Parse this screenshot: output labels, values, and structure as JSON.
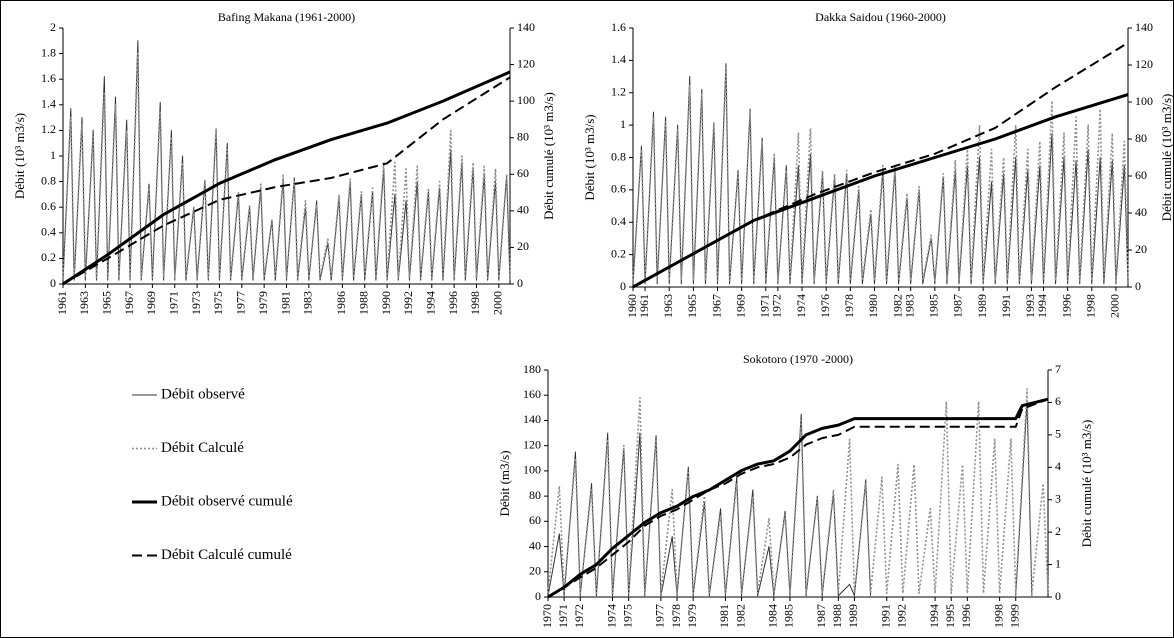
{
  "chart_data": [
    {
      "type": "line",
      "title": "Bafing Makana (1961-2000)",
      "ylabel": "Débit (10³ m3/s)",
      "y2label": "Débit cumulé (10³ m3/s)",
      "xlim": [
        1961,
        2001
      ],
      "xticks": [
        1961,
        1963,
        1965,
        1967,
        1969,
        1971,
        1973,
        1975,
        1977,
        1979,
        1981,
        1983,
        1986,
        1988,
        1990,
        1992,
        1994,
        1996,
        1998,
        2000
      ],
      "ylim": [
        0,
        2
      ],
      "yticks": [
        0,
        0.2,
        0.4,
        0.6,
        0.8,
        1,
        1.2,
        1.4,
        1.6,
        1.8,
        2
      ],
      "y2lim": [
        0,
        140
      ],
      "y2ticks": [
        0,
        20,
        40,
        60,
        80,
        100,
        120,
        140
      ],
      "x": [
        1961,
        1961.7,
        1962,
        1962.7,
        1963,
        1963.7,
        1964,
        1964.7,
        1965,
        1965.7,
        1966,
        1966.7,
        1967,
        1967.7,
        1968,
        1968.7,
        1969,
        1969.7,
        1970,
        1970.7,
        1971,
        1971.7,
        1972,
        1972.7,
        1973,
        1973.7,
        1974,
        1974.7,
        1975,
        1975.7,
        1976,
        1976.7,
        1977,
        1977.7,
        1978,
        1978.7,
        1979,
        1979.7,
        1980,
        1980.7,
        1981,
        1981.7,
        1982,
        1982.7,
        1983,
        1983.7,
        1984,
        1984.7,
        1985,
        1985.7,
        1986,
        1986.7,
        1987,
        1987.7,
        1988,
        1988.7,
        1989,
        1989.7,
        1990,
        1990.7,
        1991,
        1991.7,
        1992,
        1992.7,
        1993,
        1993.7,
        1994,
        1994.7,
        1995,
        1995.7,
        1996,
        1996.7,
        1997,
        1997.7,
        1998,
        1998.7,
        1999,
        1999.7,
        2000,
        2000.7,
        2001
      ],
      "series": [
        {
          "name": "Débit observé",
          "color": "#333333",
          "width": 1,
          "dash": "none",
          "values": [
            0.03,
            1.37,
            0.03,
            1.3,
            0.03,
            1.2,
            0.03,
            1.62,
            0.03,
            1.46,
            0.03,
            1.28,
            0.03,
            1.9,
            0.03,
            0.78,
            0.03,
            1.42,
            0.03,
            1.2,
            0.03,
            1.0,
            0.03,
            0.6,
            0.03,
            0.8,
            0.03,
            1.2,
            0.03,
            1.1,
            0.03,
            0.7,
            0.03,
            0.6,
            0.03,
            0.75,
            0.03,
            0.5,
            0.03,
            0.82,
            0.03,
            0.83,
            0.03,
            0.6,
            0.03,
            0.65,
            0.03,
            0.32,
            0.03,
            0.68,
            0.03,
            0.8,
            0.03,
            0.7,
            0.03,
            0.72,
            0.03,
            0.9,
            0.03,
            0.7,
            0.03,
            0.65,
            0.03,
            0.8,
            0.03,
            0.72,
            0.03,
            0.75,
            0.03,
            1.05,
            0.03,
            0.95,
            0.03,
            0.9,
            0.03,
            0.85,
            0.03,
            0.8,
            0.03,
            0.85,
            0.03
          ]
        },
        {
          "name": "Débit Calculé",
          "color": "#909090",
          "width": 1.6,
          "dash": "2,2",
          "values": [
            0.05,
            1.3,
            0.05,
            1.25,
            0.05,
            1.15,
            0.05,
            1.5,
            0.05,
            1.4,
            0.05,
            1.2,
            0.05,
            1.8,
            0.05,
            0.75,
            0.05,
            1.35,
            0.05,
            1.15,
            0.05,
            0.95,
            0.05,
            0.6,
            0.05,
            0.82,
            0.05,
            1.22,
            0.05,
            1.05,
            0.05,
            0.72,
            0.05,
            0.62,
            0.05,
            0.78,
            0.05,
            0.5,
            0.05,
            0.85,
            0.05,
            0.8,
            0.05,
            0.65,
            0.05,
            0.62,
            0.05,
            0.35,
            0.05,
            0.7,
            0.05,
            0.82,
            0.05,
            0.72,
            0.05,
            0.75,
            0.05,
            0.95,
            0.05,
            0.95,
            0.05,
            0.9,
            0.05,
            0.92,
            0.05,
            0.75,
            0.05,
            0.8,
            0.05,
            1.2,
            0.05,
            1.0,
            0.05,
            0.95,
            0.05,
            0.92,
            0.05,
            0.9,
            0.05,
            0.85,
            0.05
          ]
        },
        {
          "name": "Débit observé cumulé",
          "color": "#000000",
          "width": 3,
          "dash": "none",
          "axis": "y2",
          "x": [
            1961,
            1965,
            1970,
            1975,
            1980,
            1985,
            1990,
            1995,
            2001
          ],
          "values": [
            0,
            16,
            38,
            55,
            68,
            79,
            88,
            100,
            116
          ]
        },
        {
          "name": "Débit Calculé cumulé",
          "color": "#000000",
          "width": 2,
          "dash": "10,5",
          "axis": "y2",
          "x": [
            1961,
            1965,
            1970,
            1975,
            1980,
            1985,
            1990,
            1995,
            2001
          ],
          "values": [
            0,
            14,
            32,
            46,
            53,
            58,
            66,
            90,
            113
          ]
        }
      ]
    },
    {
      "type": "line",
      "title": "Dakka Saidou (1960-2000)",
      "ylabel": "Débit (10³ m3/s)",
      "y2label": "Débit cumulé (10³ m3/s)",
      "xlim": [
        1960,
        2001
      ],
      "xticks": [
        1960,
        1961,
        1963,
        1965,
        1967,
        1969,
        1971,
        1972,
        1974,
        1976,
        1978,
        1980,
        1982,
        1983,
        1985,
        1987,
        1989,
        1991,
        1993,
        1994,
        1996,
        1998,
        2000
      ],
      "ylim": [
        0,
        1.6
      ],
      "yticks": [
        0,
        0.2,
        0.4,
        0.6,
        0.8,
        1,
        1.2,
        1.4,
        1.6
      ],
      "y2lim": [
        0,
        140
      ],
      "y2ticks": [
        0,
        20,
        40,
        60,
        80,
        100,
        120,
        140
      ],
      "x": [
        1960,
        1960.7,
        1961,
        1961.7,
        1962,
        1962.7,
        1963,
        1963.7,
        1964,
        1964.7,
        1965,
        1965.7,
        1966,
        1966.7,
        1967,
        1967.7,
        1968,
        1968.7,
        1969,
        1969.7,
        1970,
        1970.7,
        1971,
        1971.7,
        1972,
        1972.7,
        1973,
        1973.7,
        1974,
        1974.7,
        1975,
        1975.7,
        1976,
        1976.7,
        1977,
        1977.7,
        1978,
        1978.7,
        1979,
        1979.7,
        1980,
        1980.7,
        1981,
        1981.7,
        1982,
        1982.7,
        1983,
        1983.7,
        1984,
        1984.7,
        1985,
        1985.7,
        1986,
        1986.7,
        1987,
        1987.7,
        1988,
        1988.7,
        1989,
        1989.7,
        1990,
        1990.7,
        1991,
        1991.7,
        1992,
        1992.7,
        1993,
        1993.7,
        1994,
        1994.7,
        1995,
        1995.7,
        1996,
        1996.7,
        1997,
        1997.7,
        1998,
        1998.7,
        1999,
        1999.7,
        2000,
        2000.7,
        2001
      ],
      "series": [
        {
          "color": "#333333",
          "width": 1,
          "dash": "none",
          "values": [
            0.02,
            0.87,
            0.02,
            1.08,
            0.02,
            1.05,
            0.02,
            1.0,
            0.02,
            1.3,
            0.02,
            1.22,
            0.02,
            1.0,
            0.02,
            1.38,
            0.02,
            0.72,
            0.02,
            1.1,
            0.02,
            0.92,
            0.02,
            0.8,
            0.02,
            0.75,
            0.02,
            0.75,
            0.02,
            0.82,
            0.02,
            0.7,
            0.02,
            0.68,
            0.02,
            0.7,
            0.02,
            0.6,
            0.02,
            0.45,
            0.02,
            0.72,
            0.02,
            0.72,
            0.02,
            0.55,
            0.02,
            0.6,
            0.02,
            0.3,
            0.02,
            0.68,
            0.02,
            0.72,
            0.02,
            0.75,
            0.02,
            0.8,
            0.02,
            0.65,
            0.02,
            0.7,
            0.02,
            0.8,
            0.02,
            0.72,
            0.02,
            0.75,
            0.02,
            0.95,
            0.02,
            0.8,
            0.02,
            0.78,
            0.02,
            0.85,
            0.02,
            0.8,
            0.02,
            0.78,
            0.02,
            0.75,
            0.02
          ]
        },
        {
          "color": "#909090",
          "width": 1.6,
          "dash": "2,2",
          "values": [
            0.04,
            0.85,
            0.04,
            1.05,
            0.04,
            1.02,
            0.04,
            0.98,
            0.04,
            1.25,
            0.04,
            1.2,
            0.04,
            1.02,
            0.04,
            1.35,
            0.04,
            0.7,
            0.04,
            1.08,
            0.04,
            0.9,
            0.04,
            0.82,
            0.04,
            0.72,
            0.04,
            0.95,
            0.04,
            0.98,
            0.04,
            0.72,
            0.04,
            0.7,
            0.04,
            0.72,
            0.04,
            0.62,
            0.04,
            0.48,
            0.04,
            0.75,
            0.04,
            0.75,
            0.04,
            0.58,
            0.04,
            0.62,
            0.04,
            0.32,
            0.04,
            0.7,
            0.04,
            0.78,
            0.04,
            0.85,
            0.04,
            1.0,
            0.04,
            0.85,
            0.04,
            0.8,
            0.04,
            1.0,
            0.04,
            0.85,
            0.04,
            0.9,
            0.04,
            1.15,
            0.04,
            0.95,
            0.04,
            1.05,
            0.04,
            1.0,
            0.04,
            1.1,
            0.04,
            0.95,
            0.04,
            0.9,
            0.04
          ]
        },
        {
          "color": "#000000",
          "width": 3,
          "dash": "none",
          "axis": "y2",
          "x": [
            1960,
            1965,
            1970,
            1975,
            1980,
            1985,
            1990,
            1995,
            2001
          ],
          "values": [
            0,
            18,
            36,
            48,
            60,
            70,
            80,
            92,
            104
          ]
        },
        {
          "color": "#000000",
          "width": 2,
          "dash": "10,5",
          "axis": "y2",
          "x": [
            1960,
            1965,
            1970,
            1975,
            1980,
            1985,
            1990,
            1995,
            2001
          ],
          "values": [
            0,
            18,
            36,
            50,
            62,
            72,
            86,
            108,
            132
          ]
        }
      ]
    },
    {
      "type": "line",
      "title": "Sokotoro (1970 -2000)",
      "ylabel": "Débit (m3/s)",
      "y2label": "Débit cumulé (10³ m3/s)",
      "xlim": [
        1970,
        2001
      ],
      "xticks": [
        1970,
        1971,
        1972,
        1974,
        1975,
        1977,
        1978,
        1979,
        1981,
        1982,
        1984,
        1985,
        1987,
        1988,
        1989,
        1991,
        1992,
        1994,
        1995,
        1996,
        1998,
        1999
      ],
      "ylim": [
        0,
        180
      ],
      "yticks": [
        0,
        20,
        40,
        60,
        80,
        100,
        120,
        140,
        160,
        180
      ],
      "y2lim": [
        0,
        7
      ],
      "y2ticks": [
        0,
        1,
        2,
        3,
        4,
        5,
        6,
        7
      ],
      "x": [
        1970,
        1970.7,
        1971,
        1971.7,
        1972,
        1972.7,
        1973,
        1973.7,
        1974,
        1974.7,
        1975,
        1975.7,
        1976,
        1976.7,
        1977,
        1977.7,
        1978,
        1978.7,
        1979,
        1979.7,
        1980,
        1980.7,
        1981,
        1981.7,
        1982,
        1982.7,
        1983,
        1983.7,
        1984,
        1984.7,
        1985,
        1985.7,
        1986,
        1986.7,
        1987,
        1987.7,
        1988,
        1988.7,
        1989,
        1989.7,
        1990,
        1990.7,
        1991,
        1991.7,
        1992,
        1992.7,
        1993,
        1993.7,
        1994,
        1994.7,
        1995,
        1995.7,
        1996,
        1996.7,
        1997,
        1997.7,
        1998,
        1998.7,
        1999,
        1999.7,
        2000,
        2000.7,
        2001
      ],
      "series": [
        {
          "color": "#333333",
          "width": 1,
          "dash": "none",
          "values": [
            1,
            50,
            1,
            115,
            1,
            90,
            1,
            130,
            1,
            118,
            1,
            130,
            1,
            128,
            1,
            48,
            1,
            103,
            1,
            75,
            1,
            70,
            1,
            95,
            1,
            85,
            1,
            40,
            1,
            68,
            1,
            145,
            1,
            80,
            1,
            82,
            1,
            10,
            1,
            93,
            1,
            null,
            null,
            null,
            null,
            null,
            null,
            null,
            null,
            null,
            null,
            null,
            null,
            null,
            null,
            null,
            null,
            null,
            1,
            155,
            1,
            null,
            null
          ]
        },
        {
          "color": "#909090",
          "width": 1.6,
          "dash": "2,2",
          "values": [
            3,
            88,
            3,
            110,
            3,
            85,
            3,
            125,
            3,
            120,
            3,
            158,
            3,
            125,
            3,
            85,
            3,
            100,
            3,
            80,
            3,
            65,
            3,
            90,
            3,
            80,
            3,
            62,
            3,
            65,
            3,
            140,
            3,
            78,
            3,
            85,
            3,
            125,
            3,
            90,
            3,
            95,
            3,
            105,
            3,
            105,
            3,
            70,
            3,
            155,
            3,
            105,
            3,
            155,
            3,
            125,
            3,
            125,
            3,
            165,
            3,
            90,
            3
          ]
        },
        {
          "color": "#000000",
          "width": 3,
          "dash": "none",
          "axis": "y2",
          "x": [
            1970,
            1971,
            1972,
            1973,
            1974,
            1975,
            1976,
            1977,
            1978,
            1979,
            1980,
            1981,
            1982,
            1983,
            1984,
            1985,
            1986,
            1987,
            1988,
            1989,
            1999,
            1999.4,
            2001
          ],
          "values": [
            0,
            0.3,
            0.7,
            1.0,
            1.5,
            1.9,
            2.3,
            2.6,
            2.8,
            3.1,
            3.3,
            3.6,
            3.9,
            4.1,
            4.2,
            4.5,
            5.0,
            5.2,
            5.3,
            5.5,
            5.5,
            5.9,
            6.1
          ]
        },
        {
          "color": "#000000",
          "width": 2,
          "dash": "10,5",
          "axis": "y2",
          "x": [
            1970,
            1971,
            1972,
            1973,
            1974,
            1975,
            1976,
            1977,
            1978,
            1979,
            1980,
            1981,
            1982,
            1983,
            1984,
            1985,
            1986,
            1987,
            1988,
            1989,
            1999,
            1999.4,
            2001
          ],
          "values": [
            0,
            0.3,
            0.6,
            0.9,
            1.3,
            1.7,
            2.2,
            2.5,
            2.7,
            3.0,
            3.3,
            3.5,
            3.8,
            4.0,
            4.1,
            4.3,
            4.7,
            4.9,
            5.0,
            5.25,
            5.25,
            5.8,
            6.1
          ]
        }
      ]
    }
  ]
}
